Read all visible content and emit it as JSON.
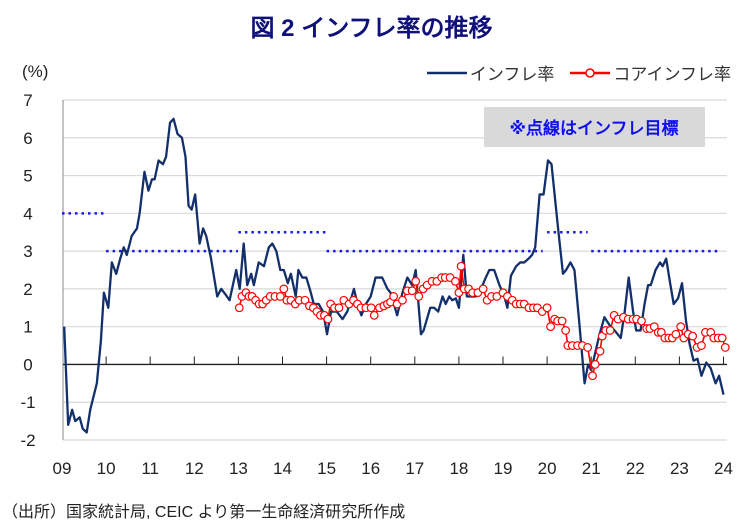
{
  "chart_data": {
    "type": "line",
    "title": "図 2  インフレ率の推移",
    "ylabel": "(%)",
    "xlabel": "",
    "ylim": [
      -2,
      7
    ],
    "xlim": [
      2009,
      2024
    ],
    "yticks": [
      "7",
      "6",
      "5",
      "4",
      "3",
      "2",
      "1",
      "0",
      "-1",
      "-2"
    ],
    "xticks": [
      "09",
      "10",
      "11",
      "12",
      "13",
      "14",
      "15",
      "16",
      "17",
      "18",
      "19",
      "20",
      "21",
      "22",
      "23",
      "24"
    ],
    "grid": true,
    "legend_position": "top-right",
    "annotation": "※点線はインフレ目標",
    "series": [
      {
        "name": "インフレ率",
        "color": "#13306b",
        "points": [
          [
            2009.05,
            1.0
          ],
          [
            2009.14,
            -1.6
          ],
          [
            2009.23,
            -1.2
          ],
          [
            2009.3,
            -1.5
          ],
          [
            2009.4,
            -1.4
          ],
          [
            2009.47,
            -1.7
          ],
          [
            2009.56,
            -1.8
          ],
          [
            2009.64,
            -1.2
          ],
          [
            2009.79,
            -0.5
          ],
          [
            2009.88,
            0.6
          ],
          [
            2009.95,
            1.9
          ],
          [
            2010.05,
            1.5
          ],
          [
            2010.13,
            2.7
          ],
          [
            2010.23,
            2.4
          ],
          [
            2010.32,
            2.8
          ],
          [
            2010.4,
            3.1
          ],
          [
            2010.47,
            2.9
          ],
          [
            2010.58,
            3.4
          ],
          [
            2010.7,
            3.6
          ],
          [
            2010.76,
            4.0
          ],
          [
            2010.87,
            5.1
          ],
          [
            2010.96,
            4.6
          ],
          [
            2011.04,
            4.9
          ],
          [
            2011.1,
            4.9
          ],
          [
            2011.19,
            5.4
          ],
          [
            2011.29,
            5.3
          ],
          [
            2011.36,
            5.5
          ],
          [
            2011.45,
            6.4
          ],
          [
            2011.53,
            6.5
          ],
          [
            2011.62,
            6.1
          ],
          [
            2011.72,
            6.0
          ],
          [
            2011.8,
            5.5
          ],
          [
            2011.87,
            4.2
          ],
          [
            2011.94,
            4.1
          ],
          [
            2012.02,
            4.5
          ],
          [
            2012.12,
            3.2
          ],
          [
            2012.2,
            3.6
          ],
          [
            2012.27,
            3.4
          ],
          [
            2012.38,
            2.8
          ],
          [
            2012.52,
            1.8
          ],
          [
            2012.61,
            2.0
          ],
          [
            2012.71,
            1.85
          ],
          [
            2012.8,
            1.7
          ],
          [
            2012.95,
            2.5
          ],
          [
            2013.03,
            2.0
          ],
          [
            2013.12,
            3.2
          ],
          [
            2013.2,
            2.1
          ],
          [
            2013.29,
            2.4
          ],
          [
            2013.35,
            2.1
          ],
          [
            2013.46,
            2.7
          ],
          [
            2013.58,
            2.6
          ],
          [
            2013.69,
            3.1
          ],
          [
            2013.77,
            3.2
          ],
          [
            2013.86,
            3.0
          ],
          [
            2013.95,
            2.5
          ],
          [
            2014.03,
            2.5
          ],
          [
            2014.12,
            2.15
          ],
          [
            2014.19,
            2.4
          ],
          [
            2014.3,
            1.8
          ],
          [
            2014.36,
            2.5
          ],
          [
            2014.45,
            2.3
          ],
          [
            2014.54,
            2.3
          ],
          [
            2014.63,
            1.95
          ],
          [
            2014.71,
            1.6
          ],
          [
            2014.82,
            1.6
          ],
          [
            2014.92,
            1.4
          ],
          [
            2015.01,
            0.8
          ],
          [
            2015.1,
            1.4
          ],
          [
            2015.23,
            1.4
          ],
          [
            2015.36,
            1.2
          ],
          [
            2015.47,
            1.4
          ],
          [
            2015.62,
            2.0
          ],
          [
            2015.7,
            1.6
          ],
          [
            2015.79,
            1.3
          ],
          [
            2015.89,
            1.6
          ],
          [
            2016.0,
            1.8
          ],
          [
            2016.11,
            2.3
          ],
          [
            2016.26,
            2.3
          ],
          [
            2016.38,
            2.0
          ],
          [
            2016.45,
            1.9
          ],
          [
            2016.6,
            1.3
          ],
          [
            2016.72,
            1.9
          ],
          [
            2016.83,
            2.3
          ],
          [
            2016.94,
            2.1
          ],
          [
            2017.02,
            2.5
          ],
          [
            2017.14,
            0.8
          ],
          [
            2017.2,
            0.9
          ],
          [
            2017.35,
            1.5
          ],
          [
            2017.44,
            1.5
          ],
          [
            2017.53,
            1.4
          ],
          [
            2017.63,
            1.8
          ],
          [
            2017.7,
            1.6
          ],
          [
            2017.78,
            1.8
          ],
          [
            2017.85,
            1.7
          ],
          [
            2017.93,
            1.75
          ],
          [
            2018.0,
            1.5
          ],
          [
            2018.1,
            2.9
          ],
          [
            2018.18,
            1.8
          ],
          [
            2018.27,
            1.8
          ],
          [
            2018.38,
            1.8
          ],
          [
            2018.5,
            2.0
          ],
          [
            2018.61,
            2.3
          ],
          [
            2018.69,
            2.5
          ],
          [
            2018.8,
            2.5
          ],
          [
            2018.92,
            2.1
          ],
          [
            2019.03,
            1.8
          ],
          [
            2019.1,
            1.5
          ],
          [
            2019.18,
            2.35
          ],
          [
            2019.3,
            2.6
          ],
          [
            2019.39,
            2.7
          ],
          [
            2019.48,
            2.7
          ],
          [
            2019.58,
            2.8
          ],
          [
            2019.66,
            2.9
          ],
          [
            2019.73,
            3.1
          ],
          [
            2019.83,
            4.5
          ],
          [
            2019.92,
            4.5
          ],
          [
            2020.02,
            5.4
          ],
          [
            2020.1,
            5.3
          ],
          [
            2020.24,
            3.7
          ],
          [
            2020.36,
            2.4
          ],
          [
            2020.43,
            2.5
          ],
          [
            2020.53,
            2.7
          ],
          [
            2020.62,
            2.5
          ],
          [
            2020.73,
            1.1
          ],
          [
            2020.85,
            -0.5
          ],
          [
            2020.93,
            0.0
          ],
          [
            2021.0,
            -0.15
          ],
          [
            2021.19,
            0.8
          ],
          [
            2021.3,
            1.25
          ],
          [
            2021.41,
            1.05
          ],
          [
            2021.53,
            0.9
          ],
          [
            2021.67,
            0.7
          ],
          [
            2021.76,
            1.4
          ],
          [
            2021.85,
            2.3
          ],
          [
            2021.95,
            1.4
          ],
          [
            2022.02,
            0.9
          ],
          [
            2022.12,
            0.9
          ],
          [
            2022.21,
            1.6
          ],
          [
            2022.29,
            2.1
          ],
          [
            2022.35,
            2.1
          ],
          [
            2022.46,
            2.5
          ],
          [
            2022.56,
            2.7
          ],
          [
            2022.62,
            2.6
          ],
          [
            2022.7,
            2.8
          ],
          [
            2022.79,
            2.15
          ],
          [
            2022.87,
            1.6
          ],
          [
            2022.97,
            1.75
          ],
          [
            2023.06,
            2.15
          ],
          [
            2023.15,
            1.15
          ],
          [
            2023.23,
            0.55
          ],
          [
            2023.32,
            0.1
          ],
          [
            2023.41,
            0.15
          ],
          [
            2023.5,
            -0.3
          ],
          [
            2023.61,
            0.05
          ],
          [
            2023.71,
            -0.1
          ],
          [
            2023.82,
            -0.5
          ],
          [
            2023.9,
            -0.3
          ],
          [
            2024.0,
            -0.8
          ]
        ]
      },
      {
        "name": "コアインフレ率",
        "color": "#ff0000",
        "points": [
          [
            2013.02,
            1.5
          ],
          [
            2013.08,
            1.8
          ],
          [
            2013.17,
            1.9
          ],
          [
            2013.24,
            1.8
          ],
          [
            2013.31,
            1.8
          ],
          [
            2013.39,
            1.7
          ],
          [
            2013.47,
            1.6
          ],
          [
            2013.55,
            1.6
          ],
          [
            2013.63,
            1.7
          ],
          [
            2013.72,
            1.8
          ],
          [
            2013.83,
            1.8
          ],
          [
            2013.95,
            1.8
          ],
          [
            2014.03,
            2.0
          ],
          [
            2014.1,
            1.7
          ],
          [
            2014.19,
            1.7
          ],
          [
            2014.29,
            1.6
          ],
          [
            2014.38,
            1.7
          ],
          [
            2014.51,
            1.7
          ],
          [
            2014.61,
            1.55
          ],
          [
            2014.7,
            1.5
          ],
          [
            2014.78,
            1.4
          ],
          [
            2014.86,
            1.3
          ],
          [
            2014.95,
            1.3
          ],
          [
            2015.03,
            1.2
          ],
          [
            2015.09,
            1.6
          ],
          [
            2015.18,
            1.5
          ],
          [
            2015.28,
            1.5
          ],
          [
            2015.39,
            1.7
          ],
          [
            2015.51,
            1.6
          ],
          [
            2015.61,
            1.7
          ],
          [
            2015.7,
            1.6
          ],
          [
            2015.78,
            1.5
          ],
          [
            2015.89,
            1.5
          ],
          [
            2016.01,
            1.5
          ],
          [
            2016.08,
            1.3
          ],
          [
            2016.2,
            1.5
          ],
          [
            2016.3,
            1.55
          ],
          [
            2016.38,
            1.6
          ],
          [
            2016.45,
            1.65
          ],
          [
            2016.52,
            1.8
          ],
          [
            2016.6,
            1.6
          ],
          [
            2016.72,
            1.7
          ],
          [
            2016.83,
            1.95
          ],
          [
            2016.94,
            1.95
          ],
          [
            2017.02,
            2.2
          ],
          [
            2017.09,
            1.8
          ],
          [
            2017.19,
            2.0
          ],
          [
            2017.28,
            2.1
          ],
          [
            2017.39,
            2.2
          ],
          [
            2017.5,
            2.2
          ],
          [
            2017.61,
            2.3
          ],
          [
            2017.69,
            2.3
          ],
          [
            2017.8,
            2.3
          ],
          [
            2017.92,
            2.2
          ],
          [
            2018.0,
            1.9
          ],
          [
            2018.05,
            2.6
          ],
          [
            2018.12,
            2.0
          ],
          [
            2018.22,
            2.0
          ],
          [
            2018.31,
            1.9
          ],
          [
            2018.43,
            1.9
          ],
          [
            2018.55,
            2.0
          ],
          [
            2018.64,
            1.7
          ],
          [
            2018.74,
            1.8
          ],
          [
            2018.86,
            1.8
          ],
          [
            2019.0,
            1.9
          ],
          [
            2019.1,
            1.8
          ],
          [
            2019.21,
            1.7
          ],
          [
            2019.3,
            1.6
          ],
          [
            2019.39,
            1.6
          ],
          [
            2019.48,
            1.6
          ],
          [
            2019.59,
            1.5
          ],
          [
            2019.69,
            1.5
          ],
          [
            2019.78,
            1.5
          ],
          [
            2019.89,
            1.4
          ],
          [
            2020.0,
            1.5
          ],
          [
            2020.08,
            1.0
          ],
          [
            2020.17,
            1.2
          ],
          [
            2020.24,
            1.15
          ],
          [
            2020.34,
            1.15
          ],
          [
            2020.42,
            0.9
          ],
          [
            2020.47,
            0.5
          ],
          [
            2020.57,
            0.5
          ],
          [
            2020.69,
            0.5
          ],
          [
            2020.8,
            0.5
          ],
          [
            2020.92,
            0.45
          ],
          [
            2021.03,
            -0.3
          ],
          [
            2021.09,
            0.0
          ],
          [
            2021.2,
            0.35
          ],
          [
            2021.25,
            0.75
          ],
          [
            2021.33,
            0.9
          ],
          [
            2021.43,
            0.9
          ],
          [
            2021.52,
            1.3
          ],
          [
            2021.61,
            1.2
          ],
          [
            2021.73,
            1.25
          ],
          [
            2021.84,
            1.2
          ],
          [
            2021.95,
            1.2
          ],
          [
            2022.03,
            1.2
          ],
          [
            2022.14,
            1.15
          ],
          [
            2022.26,
            0.95
          ],
          [
            2022.33,
            0.95
          ],
          [
            2022.43,
            1.0
          ],
          [
            2022.52,
            0.85
          ],
          [
            2022.59,
            0.85
          ],
          [
            2022.67,
            0.7
          ],
          [
            2022.76,
            0.7
          ],
          [
            2022.84,
            0.7
          ],
          [
            2022.92,
            0.8
          ],
          [
            2023.03,
            1.0
          ],
          [
            2023.1,
            0.7
          ],
          [
            2023.2,
            0.8
          ],
          [
            2023.3,
            0.75
          ],
          [
            2023.4,
            0.45
          ],
          [
            2023.5,
            0.5
          ],
          [
            2023.59,
            0.85
          ],
          [
            2023.71,
            0.85
          ],
          [
            2023.78,
            0.7
          ],
          [
            2023.88,
            0.7
          ],
          [
            2023.97,
            0.7
          ],
          [
            2024.04,
            0.45
          ]
        ]
      }
    ],
    "targets": [
      {
        "from": 2009.0,
        "to": 2009.95,
        "value": 4
      },
      {
        "from": 2010.0,
        "to": 2012.99,
        "value": 3
      },
      {
        "from": 2013.0,
        "to": 2014.99,
        "value": 3.5
      },
      {
        "from": 2015.0,
        "to": 2019.9,
        "value": 3
      },
      {
        "from": 2020.0,
        "to": 2020.92,
        "value": 3.5
      },
      {
        "from": 2021.0,
        "to": 2023.92,
        "value": 3
      }
    ],
    "target_color": "#1a1aee"
  },
  "source": "（出所）国家統計局, CEIC より第一生命経済研究所作成"
}
